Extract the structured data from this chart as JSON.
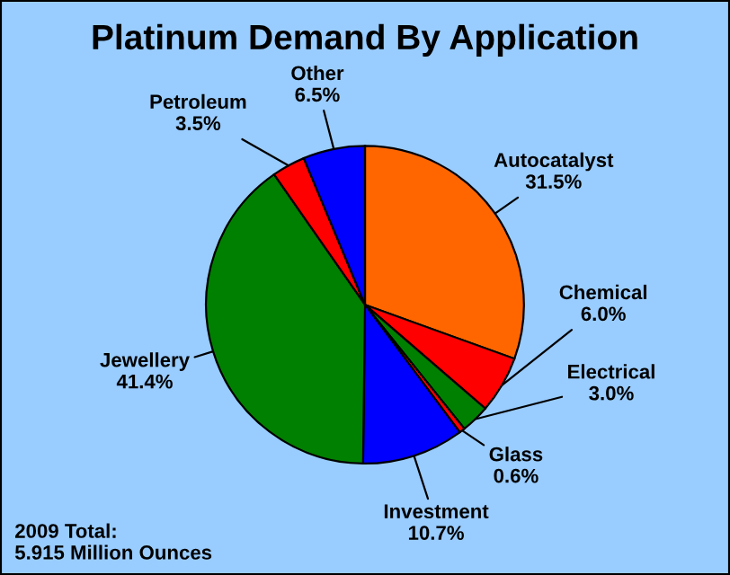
{
  "chart_data": {
    "type": "pie",
    "title": "Platinum Demand By Application",
    "categories": [
      "Autocatalyst",
      "Chemical",
      "Electrical",
      "Glass",
      "Investment",
      "Jewellery",
      "Petroleum",
      "Other"
    ],
    "values": [
      31.5,
      6.0,
      3.0,
      0.6,
      10.7,
      41.4,
      3.5,
      6.5
    ],
    "value_labels": [
      "31.5%",
      "6.0%",
      "3.0%",
      "0.6%",
      "10.7%",
      "41.4%",
      "3.5%",
      "6.5%"
    ],
    "colors": [
      "#ff6600",
      "#ff0000",
      "#008000",
      "#ff0000",
      "#0000ff",
      "#008000",
      "#ff0000",
      "#0000ff"
    ],
    "annotations": [
      "2009 Total:\n5.915 Million Ounces"
    ],
    "legend": false
  }
}
